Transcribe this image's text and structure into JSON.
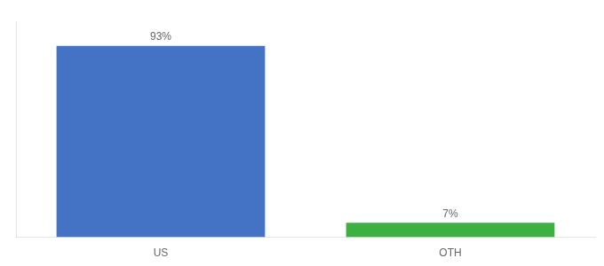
{
  "chart_data": {
    "type": "bar",
    "categories": [
      "US",
      "OTH"
    ],
    "values": [
      93,
      7
    ],
    "value_labels": [
      "93%",
      "7%"
    ],
    "colors": [
      "#4472C4",
      "#3CB040"
    ],
    "ylim": [
      0,
      105
    ],
    "yticks": [],
    "grid": false,
    "data_labels": true,
    "tick_labels": "x"
  }
}
